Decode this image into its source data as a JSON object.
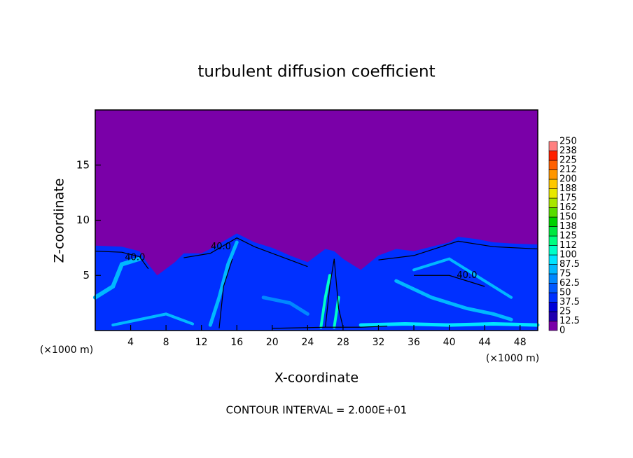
{
  "chart_data": {
    "type": "contour",
    "title": "turbulent diffusion coefficient",
    "xlabel": "X-coordinate",
    "ylabel": "Z-coordinate",
    "xunit": "(×1000 m)",
    "yunit": "(×1000 m)",
    "footer": "CONTOUR INTERVAL = 2.000E+01",
    "contour_labels": [
      "40.0",
      "40.0",
      "40.0"
    ],
    "xlim": [
      0,
      50
    ],
    "ylim": [
      0,
      20
    ],
    "xticks": [
      4,
      8,
      12,
      16,
      20,
      24,
      28,
      32,
      36,
      40,
      44,
      48
    ],
    "yticks": [
      5,
      10,
      15
    ],
    "colorbar": {
      "levels": [
        0,
        12.5,
        25,
        37.5,
        50,
        62.5,
        75,
        87.5,
        100,
        {
          "value": 112.5,
          "label": "112"
        },
        125,
        {
          "value": 137.5,
          "label": "138"
        },
        150,
        {
          "value": 162.5,
          "label": "162"
        },
        175,
        {
          "value": 187.5,
          "label": "188"
        },
        200,
        {
          "value": 212.5,
          "label": "212"
        },
        225,
        {
          "value": 237.5,
          "label": "238"
        },
        250
      ],
      "colors": [
        "#7a00a8",
        "#2000b0",
        "#0000d8",
        "#0030ff",
        "#0058ff",
        "#0088ff",
        "#00b8ff",
        "#00e4ff",
        "#00ffc8",
        "#00ff80",
        "#00e840",
        "#00d200",
        "#58dc00",
        "#a8e600",
        "#e8e800",
        "#ffc800",
        "#ff9600",
        "#ff6000",
        "#ff2000",
        "#ff8080"
      ]
    }
  }
}
